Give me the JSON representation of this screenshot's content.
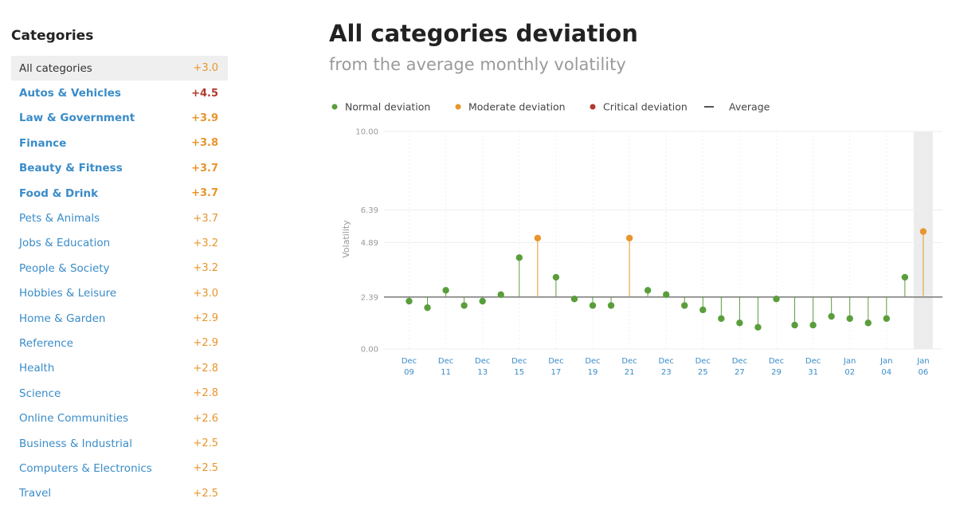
{
  "sidebar": {
    "title": "Categories",
    "items": [
      {
        "label": "All categories",
        "value": "+3.0",
        "selected": true,
        "bold": false,
        "value_color": "#e8952c"
      },
      {
        "label": "Autos & Vehicles",
        "value": "+4.5",
        "selected": false,
        "bold": true,
        "value_color": "#b03a2e"
      },
      {
        "label": "Law & Government",
        "value": "+3.9",
        "selected": false,
        "bold": true,
        "value_color": "#e8952c"
      },
      {
        "label": "Finance",
        "value": "+3.8",
        "selected": false,
        "bold": true,
        "value_color": "#e8952c"
      },
      {
        "label": "Beauty & Fitness",
        "value": "+3.7",
        "selected": false,
        "bold": true,
        "value_color": "#e8952c"
      },
      {
        "label": "Food & Drink",
        "value": "+3.7",
        "selected": false,
        "bold": true,
        "value_color": "#e8952c"
      },
      {
        "label": "Pets & Animals",
        "value": "+3.7",
        "selected": false,
        "bold": false,
        "value_color": "#e8952c"
      },
      {
        "label": "Jobs & Education",
        "value": "+3.2",
        "selected": false,
        "bold": false,
        "value_color": "#e8952c"
      },
      {
        "label": "People & Society",
        "value": "+3.2",
        "selected": false,
        "bold": false,
        "value_color": "#e8952c"
      },
      {
        "label": "Hobbies & Leisure",
        "value": "+3.0",
        "selected": false,
        "bold": false,
        "value_color": "#e8952c"
      },
      {
        "label": "Home & Garden",
        "value": "+2.9",
        "selected": false,
        "bold": false,
        "value_color": "#e8952c"
      },
      {
        "label": "Reference",
        "value": "+2.9",
        "selected": false,
        "bold": false,
        "value_color": "#e8952c"
      },
      {
        "label": "Health",
        "value": "+2.8",
        "selected": false,
        "bold": false,
        "value_color": "#e8952c"
      },
      {
        "label": "Science",
        "value": "+2.8",
        "selected": false,
        "bold": false,
        "value_color": "#e8952c"
      },
      {
        "label": "Online Communities",
        "value": "+2.6",
        "selected": false,
        "bold": false,
        "value_color": "#e8952c"
      },
      {
        "label": "Business & Industrial",
        "value": "+2.5",
        "selected": false,
        "bold": false,
        "value_color": "#e8952c"
      },
      {
        "label": "Computers & Electronics",
        "value": "+2.5",
        "selected": false,
        "bold": false,
        "value_color": "#e8952c"
      },
      {
        "label": "Travel",
        "value": "+2.5",
        "selected": false,
        "bold": false,
        "value_color": "#e8952c"
      }
    ]
  },
  "main": {
    "title": "All categories deviation",
    "subtitle": "from the average monthly volatility"
  },
  "chart_data": {
    "type": "line",
    "ylabel": "Volatility",
    "xlabel": "",
    "ylim": [
      0,
      10
    ],
    "yticks": [
      {
        "value": 0,
        "label": "0.00"
      },
      {
        "value": 2.39,
        "label": "2.39"
      },
      {
        "value": 4.89,
        "label": "4.89"
      },
      {
        "value": 6.39,
        "label": "6.39"
      },
      {
        "value": 10,
        "label": "10.00"
      }
    ],
    "average": 2.39,
    "grid": true,
    "legend_position": "top",
    "legend": [
      {
        "label": "Normal deviation",
        "color": "#5a9e3c",
        "kind": "dot"
      },
      {
        "label": "Moderate deviation",
        "color": "#e8952c",
        "kind": "dot"
      },
      {
        "label": "Critical deviation",
        "color": "#b03a2e",
        "kind": "dot"
      },
      {
        "label": "Average",
        "color": "#555555",
        "kind": "line"
      }
    ],
    "x": [
      "Dec 09",
      "Dec 10",
      "Dec 11",
      "Dec 12",
      "Dec 13",
      "Dec 14",
      "Dec 15",
      "Dec 16",
      "Dec 17",
      "Dec 18",
      "Dec 19",
      "Dec 20",
      "Dec 21",
      "Dec 22",
      "Dec 23",
      "Dec 24",
      "Dec 25",
      "Dec 26",
      "Dec 27",
      "Dec 28",
      "Dec 29",
      "Dec 30",
      "Dec 31",
      "Jan 01",
      "Jan 02",
      "Jan 03",
      "Jan 04",
      "Jan 05",
      "Jan 06"
    ],
    "values": [
      2.2,
      1.9,
      2.7,
      2.0,
      2.2,
      2.5,
      4.2,
      5.1,
      3.3,
      2.3,
      2.0,
      2.0,
      5.1,
      2.7,
      2.5,
      2.0,
      1.8,
      1.4,
      1.2,
      1.0,
      2.3,
      1.1,
      1.1,
      1.5,
      1.4,
      1.2,
      1.4,
      3.3,
      5.4
    ],
    "categories": [
      "normal",
      "normal",
      "normal",
      "normal",
      "normal",
      "normal",
      "normal",
      "moderate",
      "normal",
      "normal",
      "normal",
      "normal",
      "moderate",
      "normal",
      "normal",
      "normal",
      "normal",
      "normal",
      "normal",
      "normal",
      "normal",
      "normal",
      "normal",
      "normal",
      "normal",
      "normal",
      "normal",
      "normal",
      "moderate"
    ],
    "tick_labels": [
      {
        "index": 0,
        "line1": "Dec",
        "line2": "09"
      },
      {
        "index": 2,
        "line1": "Dec",
        "line2": "11"
      },
      {
        "index": 4,
        "line1": "Dec",
        "line2": "13"
      },
      {
        "index": 6,
        "line1": "Dec",
        "line2": "15"
      },
      {
        "index": 8,
        "line1": "Dec",
        "line2": "17"
      },
      {
        "index": 10,
        "line1": "Dec",
        "line2": "19"
      },
      {
        "index": 12,
        "line1": "Dec",
        "line2": "21"
      },
      {
        "index": 14,
        "line1": "Dec",
        "line2": "23"
      },
      {
        "index": 16,
        "line1": "Dec",
        "line2": "25"
      },
      {
        "index": 18,
        "line1": "Dec",
        "line2": "27"
      },
      {
        "index": 20,
        "line1": "Dec",
        "line2": "29"
      },
      {
        "index": 22,
        "line1": "Dec",
        "line2": "31"
      },
      {
        "index": 24,
        "line1": "Jan",
        "line2": "02"
      },
      {
        "index": 26,
        "line1": "Jan",
        "line2": "04"
      },
      {
        "index": 28,
        "line1": "Jan",
        "line2": "06"
      }
    ],
    "highlight_index": 28,
    "colors": {
      "normal": "#5a9e3c",
      "moderate": "#e8952c",
      "critical": "#b03a2e",
      "average": "#777777",
      "grid": "#eeeeee",
      "tick": "#3a8cc8",
      "highlight": "#ececec"
    }
  }
}
